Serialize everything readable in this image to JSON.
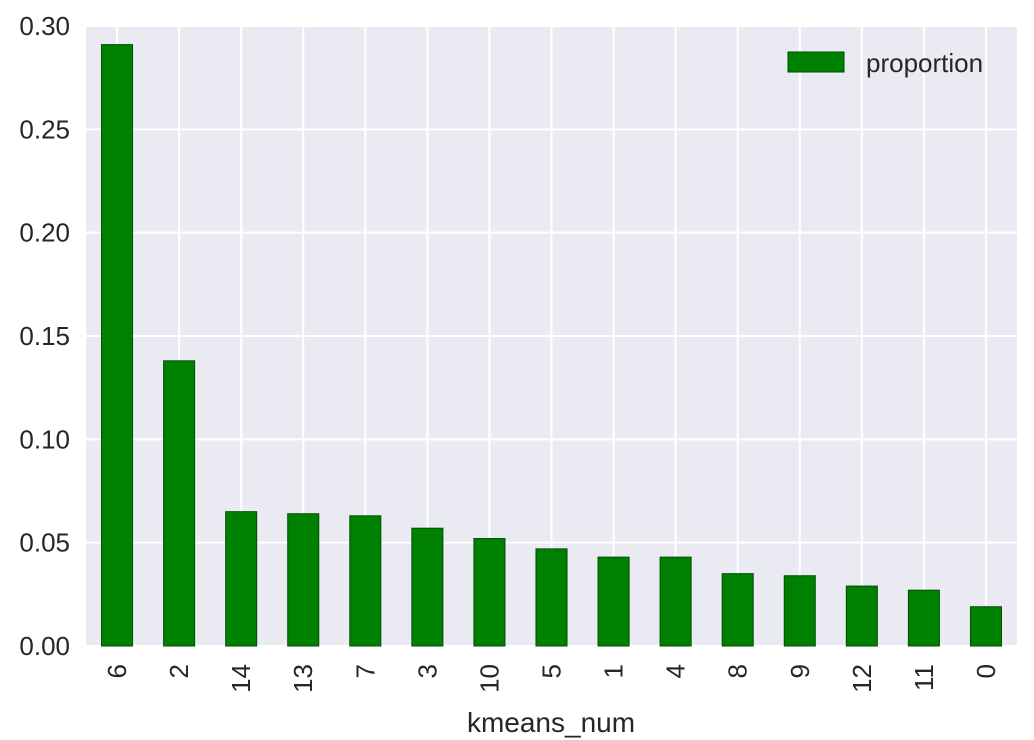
{
  "chart_data": {
    "type": "bar",
    "categories": [
      "6",
      "2",
      "14",
      "13",
      "7",
      "3",
      "10",
      "5",
      "1",
      "4",
      "8",
      "9",
      "12",
      "11",
      "0"
    ],
    "series": [
      {
        "name": "proportion",
        "values": [
          0.291,
          0.138,
          0.065,
          0.064,
          0.063,
          0.057,
          0.052,
          0.047,
          0.043,
          0.043,
          0.035,
          0.034,
          0.029,
          0.027,
          0.019
        ]
      }
    ],
    "title": "",
    "xlabel": "kmeans_num",
    "ylabel": "",
    "ylim": [
      0,
      0.3
    ],
    "yticks": [
      "0.00",
      "0.05",
      "0.10",
      "0.15",
      "0.20",
      "0.25",
      "0.30"
    ],
    "grid": true,
    "legend_position": "top-right",
    "colors": {
      "bar": "#008000",
      "bar_edge": "#004d00",
      "plot_background": "#eaeaf2",
      "grid": "#ffffff"
    }
  }
}
